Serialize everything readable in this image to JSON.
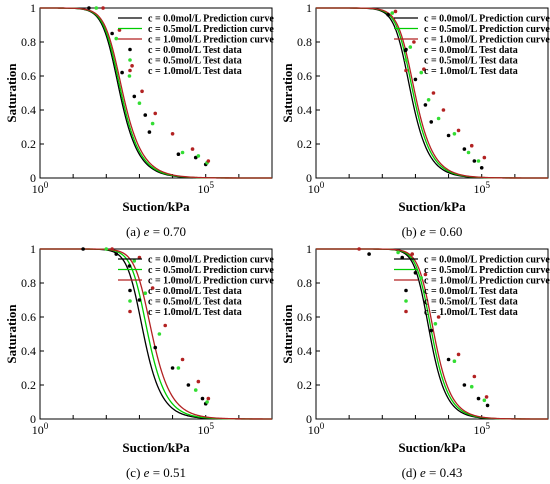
{
  "chart_data": [
    {
      "type": "line",
      "panel": "(a)",
      "caption_label": "(a)",
      "caption_var": "e",
      "caption_value": "= 0.70",
      "xlabel": "Suction/kPa",
      "ylabel": "Saturation",
      "xscale": "log",
      "xlim": [
        1,
        10000000
      ],
      "ylim": [
        0,
        1
      ],
      "x_ticks": [
        {
          "v": 1,
          "base": "10",
          "exp": "0"
        },
        {
          "v": 100000,
          "base": "10",
          "exp": "5"
        }
      ],
      "y_ticks": [
        0,
        0.2,
        0.4,
        0.6,
        0.8,
        1
      ],
      "legend_position": "top-right",
      "vg": [
        {
          "a": 0.0065,
          "n": 1.05
        },
        {
          "a": 0.006,
          "n": 1.03
        },
        {
          "a": 0.0055,
          "n": 1.0
        }
      ],
      "series": [
        {
          "name": "c = 0.0mol/L Prediction curve",
          "kind": "line",
          "color": "#000000"
        },
        {
          "name": "c = 0.5mol/L Prediction curve",
          "kind": "line",
          "color": "#00cc00"
        },
        {
          "name": "c = 1.0mol/L Prediction curve",
          "kind": "line",
          "color": "#b22222"
        },
        {
          "name": "c = 0.0mol/L Test data",
          "kind": "scatter",
          "color": "#000000",
          "points": [
            [
              30,
              1.0
            ],
            [
              150,
              0.85
            ],
            [
              300,
              0.62
            ],
            [
              700,
              0.48
            ],
            [
              1500,
              0.37
            ],
            [
              2000,
              0.27
            ],
            [
              15000,
              0.14
            ],
            [
              50000,
              0.12
            ],
            [
              100000,
              0.08
            ]
          ]
        },
        {
          "name": "c = 0.5mol/L Test data",
          "kind": "scatter",
          "color": "#33dd33",
          "points": [
            [
              50,
              1.0
            ],
            [
              200,
              0.82
            ],
            [
              500,
              0.6
            ],
            [
              1000,
              0.44
            ],
            [
              2500,
              0.32
            ],
            [
              20000,
              0.15
            ],
            [
              60000,
              0.13
            ],
            [
              110000,
              0.09
            ]
          ]
        },
        {
          "name": "c = 1.0mol/L Test data",
          "kind": "scatter",
          "color": "#b22222",
          "points": [
            [
              80,
              1.0
            ],
            [
              250,
              0.87
            ],
            [
              600,
              0.66
            ],
            [
              1200,
              0.51
            ],
            [
              3000,
              0.38
            ],
            [
              10000,
              0.26
            ],
            [
              40000,
              0.17
            ],
            [
              120000,
              0.1
            ]
          ]
        }
      ]
    },
    {
      "type": "line",
      "panel": "(b)",
      "caption_label": "(b)",
      "caption_var": "e",
      "caption_value": "= 0.60",
      "xlabel": "Suction/kPa",
      "ylabel": "Saturation",
      "xscale": "log",
      "xlim": [
        1,
        10000000
      ],
      "ylim": [
        0,
        1
      ],
      "x_ticks": [
        {
          "v": 1,
          "base": "10",
          "exp": "0"
        },
        {
          "v": 100000,
          "base": "10",
          "exp": "5"
        }
      ],
      "y_ticks": [
        0,
        0.2,
        0.4,
        0.6,
        0.8,
        1
      ],
      "legend_position": "top-right",
      "vg": [
        {
          "a": 0.0022,
          "n": 1.12
        },
        {
          "a": 0.0019,
          "n": 1.1
        },
        {
          "a": 0.0017,
          "n": 1.08
        }
      ],
      "series": [
        {
          "name": "c = 0.0mol/L Prediction curve",
          "kind": "line",
          "color": "#000000"
        },
        {
          "name": "c = 0.5mol/L Prediction curve",
          "kind": "line",
          "color": "#00cc00"
        },
        {
          "name": "c = 1.0mol/L Prediction curve",
          "kind": "line",
          "color": "#b22222"
        },
        {
          "name": "c = 0.0mol/L Test data",
          "kind": "scatter",
          "color": "#000000",
          "points": [
            [
              150,
              0.96
            ],
            [
              500,
              0.75
            ],
            [
              1000,
              0.58
            ],
            [
              2000,
              0.43
            ],
            [
              3000,
              0.33
            ],
            [
              10000,
              0.25
            ],
            [
              30000,
              0.17
            ],
            [
              60000,
              0.1
            ],
            [
              100000,
              0.06
            ]
          ]
        },
        {
          "name": "c = 0.5mol/L Test data",
          "kind": "scatter",
          "color": "#33dd33",
          "points": [
            [
              200,
              0.97
            ],
            [
              700,
              0.77
            ],
            [
              1500,
              0.62
            ],
            [
              2500,
              0.46
            ],
            [
              5000,
              0.35
            ],
            [
              15000,
              0.26
            ],
            [
              40000,
              0.15
            ],
            [
              80000,
              0.1
            ]
          ]
        },
        {
          "name": "c = 1.0mol/L Test data",
          "kind": "scatter",
          "color": "#b22222",
          "points": [
            [
              250,
              0.98
            ],
            [
              900,
              0.8
            ],
            [
              1800,
              0.64
            ],
            [
              3500,
              0.5
            ],
            [
              7000,
              0.4
            ],
            [
              20000,
              0.28
            ],
            [
              50000,
              0.19
            ],
            [
              120000,
              0.12
            ]
          ]
        }
      ]
    },
    {
      "type": "line",
      "panel": "(c)",
      "caption_label": "(c)",
      "caption_var": "e",
      "caption_value": "= 0.51",
      "xlabel": "Suction/kPa",
      "ylabel": "Saturation",
      "xscale": "log",
      "xlim": [
        1,
        10000000
      ],
      "ylim": [
        0,
        1
      ],
      "x_ticks": [
        {
          "v": 1,
          "base": "10",
          "exp": "0"
        },
        {
          "v": 100000,
          "base": "10",
          "exp": "5"
        }
      ],
      "y_ticks": [
        0,
        0.2,
        0.4,
        0.6,
        0.8,
        1
      ],
      "legend_position": "top-right",
      "vg": [
        {
          "a": 0.0012,
          "n": 1.12
        },
        {
          "a": 0.0009,
          "n": 1.1
        },
        {
          "a": 0.0007,
          "n": 1.04
        }
      ],
      "series": [
        {
          "name": "c = 0.0mol/L Prediction curve",
          "kind": "line",
          "color": "#000000"
        },
        {
          "name": "c = 0.5mol/L Prediction curve",
          "kind": "line",
          "color": "#00cc00"
        },
        {
          "name": "c = 1.0mol/L Prediction curve",
          "kind": "line",
          "color": "#b22222"
        },
        {
          "name": "c = 0.0mol/L Test data",
          "kind": "scatter",
          "color": "#000000",
          "points": [
            [
              20,
              1.0
            ],
            [
              200,
              0.97
            ],
            [
              500,
              0.9
            ],
            [
              1000,
              0.7
            ],
            [
              3000,
              0.42
            ],
            [
              10000,
              0.3
            ],
            [
              30000,
              0.2
            ],
            [
              80000,
              0.12
            ],
            [
              100000,
              0.09
            ]
          ]
        },
        {
          "name": "c = 0.5mol/L Test data",
          "kind": "scatter",
          "color": "#33dd33",
          "points": [
            [
              100,
              1.0
            ],
            [
              700,
              0.93
            ],
            [
              1500,
              0.74
            ],
            [
              4000,
              0.5
            ],
            [
              15000,
              0.3
            ],
            [
              50000,
              0.17
            ],
            [
              110000,
              0.1
            ]
          ]
        },
        {
          "name": "c = 1.0mol/L Test data",
          "kind": "scatter",
          "color": "#b22222",
          "points": [
            [
              150,
              1.0
            ],
            [
              1000,
              0.95
            ],
            [
              2500,
              0.77
            ],
            [
              6000,
              0.55
            ],
            [
              20000,
              0.35
            ],
            [
              60000,
              0.22
            ],
            [
              120000,
              0.12
            ]
          ]
        }
      ]
    },
    {
      "type": "line",
      "panel": "(d)",
      "caption_label": "(d)",
      "caption_var": "e",
      "caption_value": "= 0.43",
      "xlabel": "Suction/kPa",
      "ylabel": "Saturation",
      "xscale": "log",
      "xlim": [
        1,
        10000000
      ],
      "ylim": [
        0,
        1
      ],
      "x_ticks": [
        {
          "v": 1,
          "base": "10",
          "exp": "0"
        },
        {
          "v": 100000,
          "base": "10",
          "exp": "5"
        }
      ],
      "y_ticks": [
        0,
        0.2,
        0.4,
        0.6,
        0.8,
        1
      ],
      "legend_position": "top-right",
      "vg": [
        {
          "a": 0.00055,
          "n": 1.25
        },
        {
          "a": 0.00048,
          "n": 1.22
        },
        {
          "a": 0.00042,
          "n": 1.2
        }
      ],
      "series": [
        {
          "name": "c = 0.0mol/L Prediction curve",
          "kind": "line",
          "color": "#000000"
        },
        {
          "name": "c = 0.5mol/L Prediction curve",
          "kind": "line",
          "color": "#00cc00"
        },
        {
          "name": "c = 1.0mol/L Prediction curve",
          "kind": "line",
          "color": "#b22222"
        },
        {
          "name": "c = 0.0mol/L Test data",
          "kind": "scatter",
          "color": "#000000",
          "points": [
            [
              40,
              0.97
            ],
            [
              400,
              0.95
            ],
            [
              1000,
              0.86
            ],
            [
              3000,
              0.52
            ],
            [
              10000,
              0.35
            ],
            [
              30000,
              0.2
            ],
            [
              80000,
              0.12
            ],
            [
              150000,
              0.08
            ]
          ]
        },
        {
          "name": "c = 0.5mol/L Test data",
          "kind": "scatter",
          "color": "#33dd33",
          "points": [
            [
              300,
              0.98
            ],
            [
              1500,
              0.83
            ],
            [
              4000,
              0.56
            ],
            [
              15000,
              0.34
            ],
            [
              50000,
              0.19
            ],
            [
              120000,
              0.11
            ]
          ]
        },
        {
          "name": "c = 1.0mol/L Test data",
          "kind": "scatter",
          "color": "#b22222",
          "points": [
            [
              20,
              1.0
            ],
            [
              800,
              0.97
            ],
            [
              2000,
              0.85
            ],
            [
              5000,
              0.6
            ],
            [
              20000,
              0.38
            ],
            [
              60000,
              0.25
            ],
            [
              140000,
              0.13
            ]
          ]
        }
      ]
    }
  ]
}
